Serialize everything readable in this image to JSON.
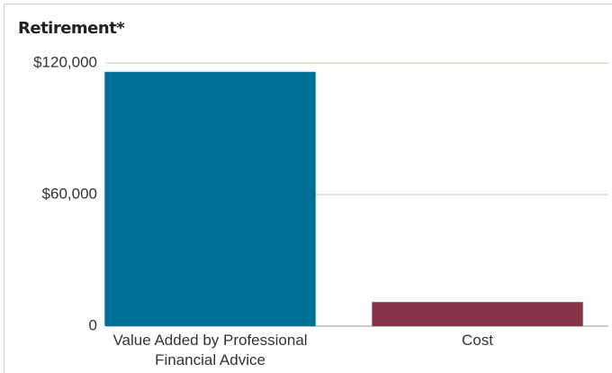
{
  "chart_data": {
    "type": "bar",
    "title": "Retirement*",
    "categories": [
      "Value Added by Professional Financial Advice",
      "Cost"
    ],
    "values": [
      116000,
      11000
    ],
    "colors": [
      "#006f94",
      "#873349"
    ],
    "ylim": [
      0,
      120000
    ],
    "yticks": [
      0,
      {
        "value": 60000,
        "label": "$60,000"
      },
      {
        "value": 120000,
        "label": "$120,000"
      }
    ],
    "grid": true
  }
}
